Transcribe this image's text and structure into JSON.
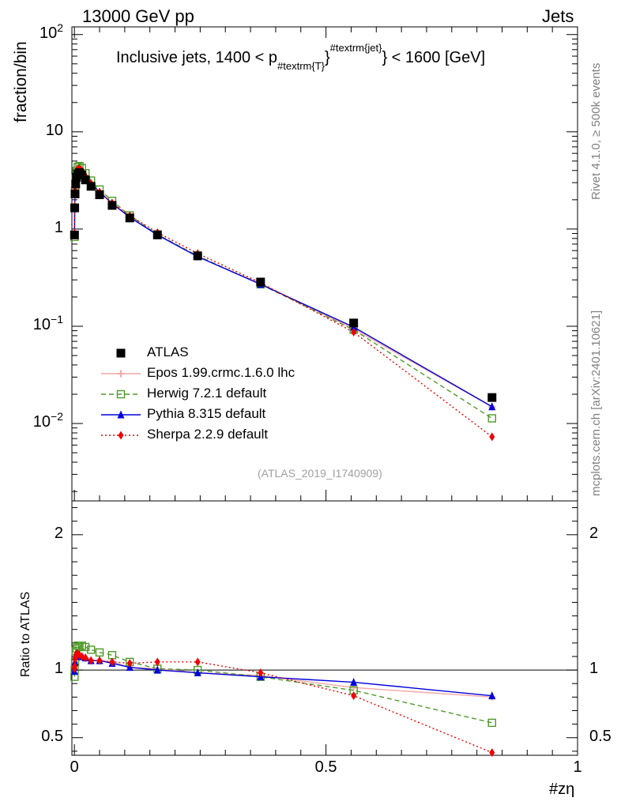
{
  "header": {
    "left": "13000 GeV pp",
    "right": "Jets"
  },
  "side_text": {
    "rivet": "Rivet 4.1.0, ≥ 500k events",
    "mcplots": "mcplots.cern.ch [arXiv:2401.10621]"
  },
  "analysis_tag": "(ATLAS_2019_I1740909)",
  "chart_data": [
    {
      "type": "line",
      "panel": "main",
      "title": "Inclusive jets, 1400 < p_{#textrm{T}}^{#textrm{jet}} < 1600 [GeV]",
      "title_parts": {
        "pre": "Inclusive jets, 1400 < p",
        "sub": "#textrm{T}",
        "sup": "#textrm{jet}",
        "post": "} < 1600 [GeV]",
        "brace": "}"
      },
      "ylabel": "fraction/bin",
      "xlabel": "#zη",
      "yscale": "log",
      "ylim": [
        0.0016,
        120
      ],
      "xlim": [
        -0.005,
        1.0
      ],
      "y_ticks": [
        {
          "value": 0.01,
          "base": "10",
          "exp": "−2"
        },
        {
          "value": 0.1,
          "base": "10",
          "exp": "−1"
        },
        {
          "value": 1,
          "base": "1",
          "exp": ""
        },
        {
          "value": 10,
          "base": "10",
          "exp": ""
        },
        {
          "value": 100,
          "base": "10",
          "exp": "2"
        }
      ],
      "x": [
        0.0002,
        0.0006,
        0.0013,
        0.0025,
        0.004,
        0.0065,
        0.01,
        0.015,
        0.022,
        0.033,
        0.05,
        0.075,
        0.11,
        0.165,
        0.245,
        0.37,
        0.555,
        0.83
      ],
      "legend": [
        "ATLAS",
        "Epos 1.99.crmc.1.6.0 lhc",
        "Herwig 7.2.1 default",
        "Pythia 8.315 default",
        "Sherpa 2.2.9 default"
      ],
      "series": [
        {
          "name": "ATLAS",
          "color": "#000000",
          "values": [
            0.87,
            1.65,
            2.3,
            2.9,
            3.4,
            3.7,
            3.8,
            3.6,
            3.2,
            2.75,
            2.25,
            1.75,
            1.3,
            0.87,
            0.53,
            0.285,
            0.108,
            0.0185
          ]
        },
        {
          "name": "Epos 1.99.crmc.1.6.0 lhc",
          "color": "#f4a7a7",
          "values": [
            0.9,
            1.7,
            2.45,
            3.15,
            3.75,
            4.1,
            4.15,
            3.95,
            3.5,
            2.95,
            2.4,
            1.85,
            1.33,
            0.88,
            0.52,
            0.275,
            0.094,
            0.0148
          ]
        },
        {
          "name": "Herwig 7.2.1 default",
          "color": "#4f9a2a",
          "values": [
            0.83,
            1.66,
            2.45,
            3.3,
            3.95,
            4.35,
            4.45,
            4.25,
            3.75,
            3.15,
            2.55,
            1.95,
            1.38,
            0.88,
            0.53,
            0.27,
            0.092,
            0.0113
          ]
        },
        {
          "name": "Pythia 8.315 default",
          "color": "#0000dd",
          "values": [
            0.86,
            1.68,
            2.45,
            3.2,
            3.8,
            4.15,
            4.2,
            3.95,
            3.5,
            2.95,
            2.4,
            1.83,
            1.32,
            0.87,
            0.52,
            0.27,
            0.098,
            0.0149
          ]
        },
        {
          "name": "Sherpa 2.2.9 default",
          "color": "#ee0000",
          "values": [
            0.88,
            1.7,
            2.48,
            3.2,
            3.8,
            4.15,
            4.2,
            3.95,
            3.5,
            2.95,
            2.4,
            1.85,
            1.37,
            0.92,
            0.56,
            0.28,
            0.087,
            0.0073
          ]
        }
      ]
    },
    {
      "type": "line",
      "panel": "ratio",
      "ylabel": "Ratio to ATLAS",
      "xlabel": "#zη",
      "ylim": [
        0.37,
        2.25
      ],
      "xlim": [
        -0.005,
        1.0
      ],
      "y_ticks": [
        0.5,
        1,
        2
      ],
      "x_ticks": [
        0,
        0.5,
        1
      ],
      "x_tick_labels": [
        "0",
        "0.5",
        "1"
      ],
      "x": [
        0.0002,
        0.0006,
        0.0013,
        0.0025,
        0.004,
        0.0065,
        0.01,
        0.015,
        0.022,
        0.033,
        0.05,
        0.075,
        0.11,
        0.165,
        0.245,
        0.37,
        0.555,
        0.83
      ],
      "series": [
        {
          "name": "Epos 1.99.crmc.1.6.0 lhc",
          "color": "#f4a7a7",
          "values": [
            1.03,
            1.03,
            1.06,
            1.09,
            1.1,
            1.11,
            1.09,
            1.1,
            1.09,
            1.07,
            1.07,
            1.06,
            1.02,
            1.01,
            0.98,
            0.96,
            0.87,
            0.8
          ]
        },
        {
          "name": "Herwig 7.2.1 default",
          "color": "#4f9a2a",
          "values": [
            0.95,
            1.0,
            1.06,
            1.14,
            1.16,
            1.18,
            1.17,
            1.18,
            1.17,
            1.15,
            1.13,
            1.11,
            1.06,
            1.01,
            1.0,
            0.95,
            0.85,
            0.61
          ]
        },
        {
          "name": "Pythia 8.315 default",
          "color": "#0000dd",
          "values": [
            0.99,
            1.02,
            1.06,
            1.1,
            1.12,
            1.12,
            1.11,
            1.1,
            1.09,
            1.07,
            1.07,
            1.05,
            1.02,
            1.0,
            0.98,
            0.95,
            0.91,
            0.81
          ]
        },
        {
          "name": "Sherpa 2.2.9 default",
          "color": "#ee0000",
          "values": [
            1.01,
            1.03,
            1.08,
            1.1,
            1.12,
            1.12,
            1.11,
            1.1,
            1.09,
            1.07,
            1.07,
            1.06,
            1.05,
            1.06,
            1.06,
            0.98,
            0.81,
            0.39
          ]
        }
      ]
    }
  ]
}
